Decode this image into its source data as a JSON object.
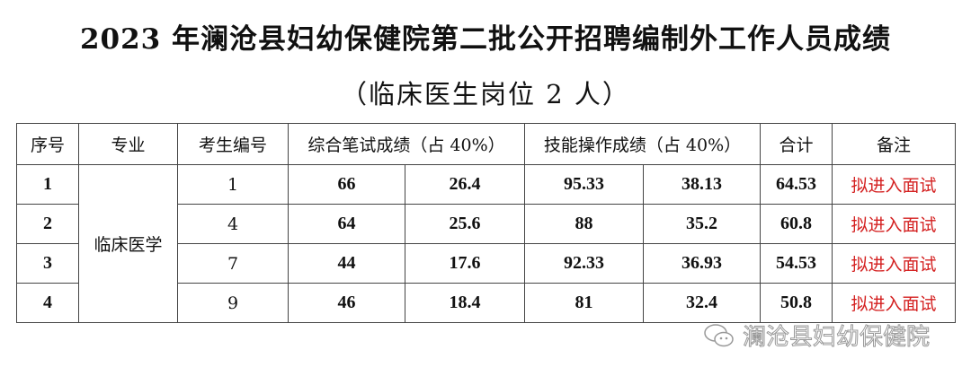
{
  "title": "2023 年澜沧县妇幼保健院第二批公开招聘编制外工作人员成绩",
  "subtitle": "（临床医生岗位 2 人）",
  "table": {
    "headers": [
      "序号",
      "专业",
      "考生编号",
      "综合笔试成绩（占 40%）",
      "技能操作成绩（占 40%）",
      "合计",
      "备注"
    ],
    "major": "临床医学",
    "rows": [
      {
        "no": "1",
        "id": "1",
        "written": "66",
        "written_w": "26.4",
        "skill": "95.33",
        "skill_w": "38.13",
        "total": "64.53",
        "note": "拟进入面试"
      },
      {
        "no": "2",
        "id": "4",
        "written": "64",
        "written_w": "25.6",
        "skill": "88",
        "skill_w": "35.2",
        "total": "60.8",
        "note": "拟进入面试"
      },
      {
        "no": "3",
        "id": "7",
        "written": "44",
        "written_w": "17.6",
        "skill": "92.33",
        "skill_w": "36.93",
        "total": "54.53",
        "note": "拟进入面试"
      },
      {
        "no": "4",
        "id": "9",
        "written": "46",
        "written_w": "18.4",
        "skill": "81",
        "skill_w": "32.4",
        "total": "50.8",
        "note": "拟进入面试"
      }
    ]
  },
  "watermark": {
    "icon": "wechat-icon",
    "text": "澜沧县妇幼保健院"
  },
  "colors": {
    "note": "#d42020"
  }
}
